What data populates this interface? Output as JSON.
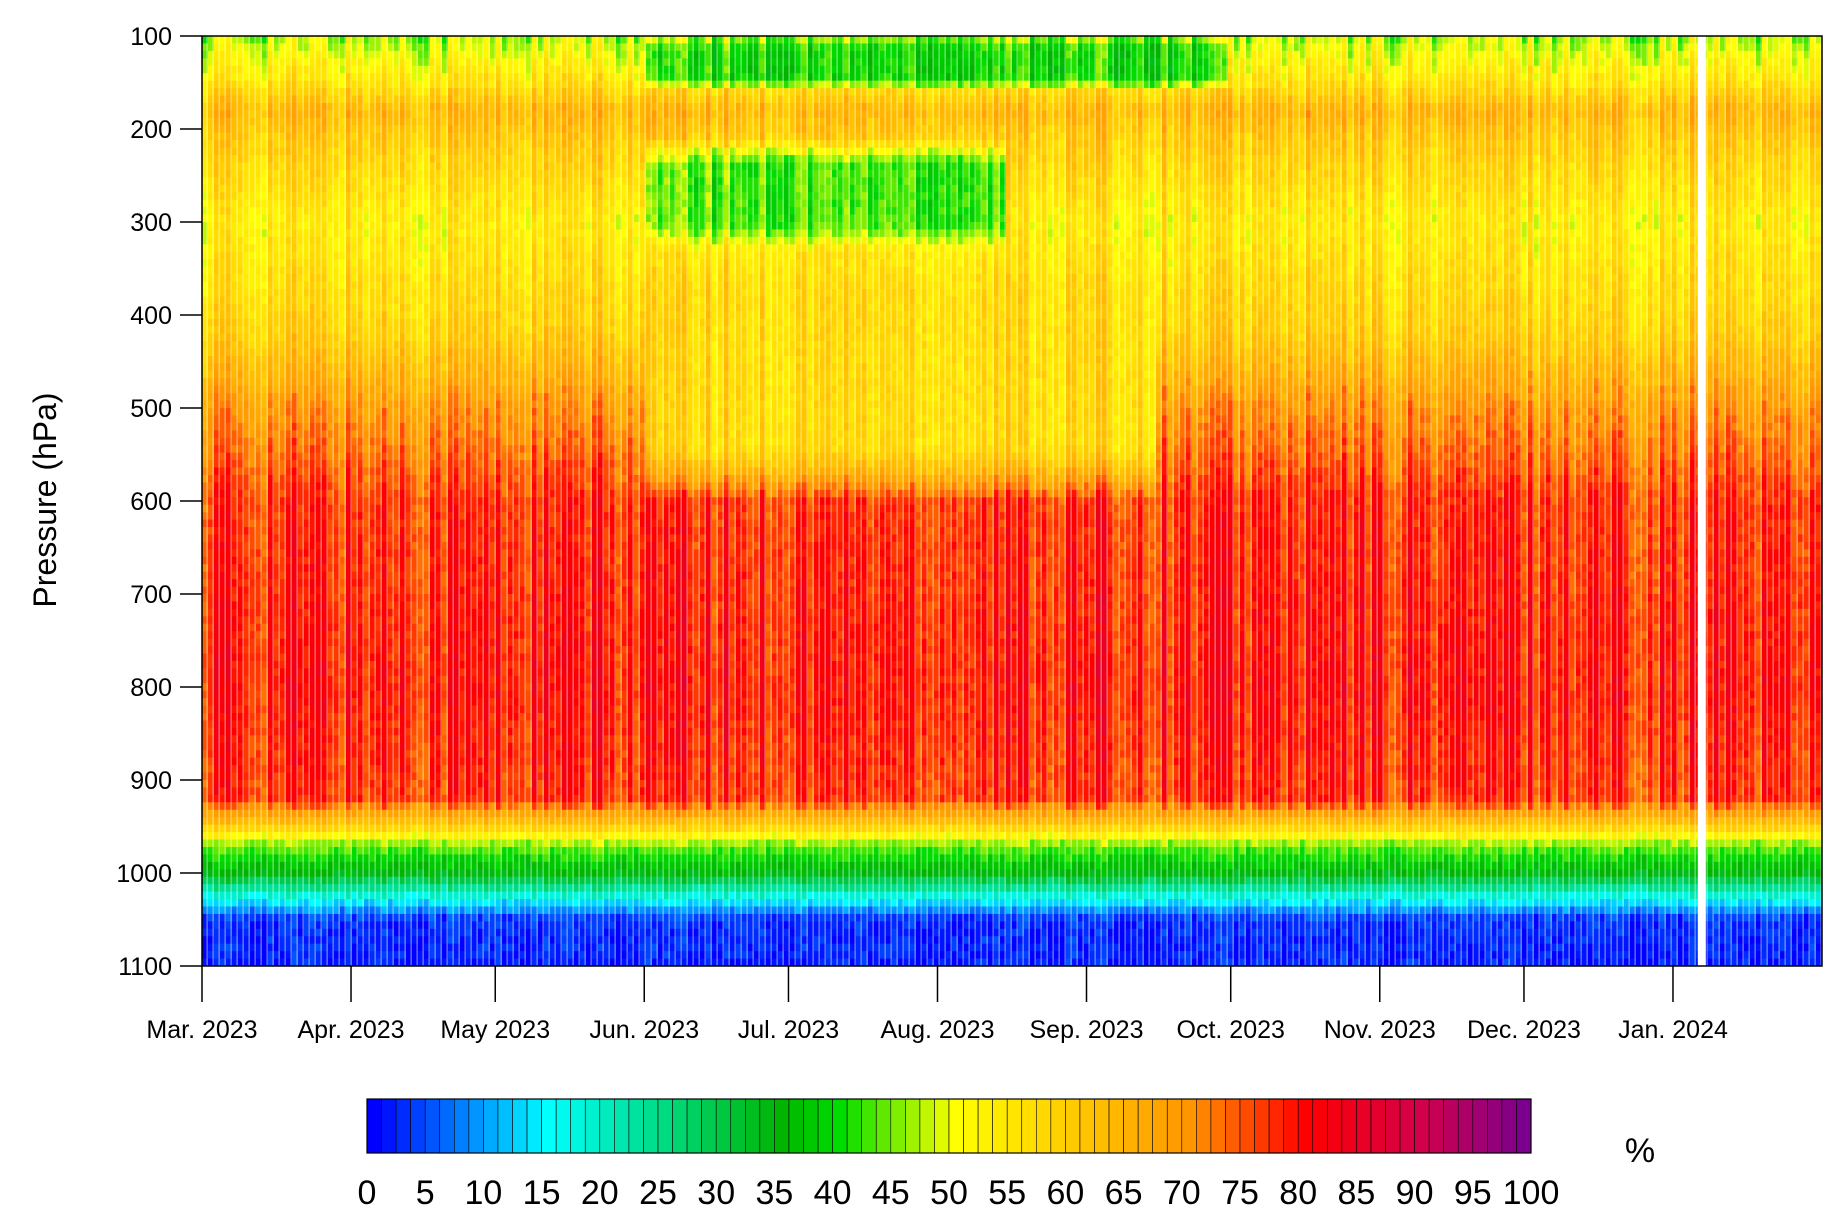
{
  "chart_data": {
    "type": "heatmap",
    "ylabel": "Pressure (hPa)",
    "y_axis": {
      "ticks": [
        100,
        200,
        300,
        400,
        500,
        600,
        700,
        800,
        900,
        1000,
        1100
      ],
      "range": [
        100,
        1100
      ],
      "inverted": true
    },
    "x_axis": {
      "ticks": [
        "Mar. 2023",
        "Apr. 2023",
        "May 2023",
        "Jun. 2023",
        "Jul. 2023",
        "Aug. 2023",
        "Sep. 2023",
        "Oct. 2023",
        "Nov. 2023",
        "Dec. 2023",
        "Jan. 2024"
      ],
      "range": [
        "2023-03-01",
        "2024-02-01"
      ]
    },
    "colorbar": {
      "unit": "%",
      "ticks": [
        0,
        5,
        10,
        15,
        20,
        25,
        30,
        35,
        40,
        45,
        50,
        55,
        60,
        65,
        70,
        75,
        80,
        85,
        90,
        95,
        100
      ],
      "range": [
        0,
        100
      ],
      "step": 1.25,
      "stops": [
        {
          "v": 0,
          "c": "#0000ff"
        },
        {
          "v": 15,
          "c": "#00ffff"
        },
        {
          "v": 35,
          "c": "#00b400"
        },
        {
          "v": 40,
          "c": "#00dc00"
        },
        {
          "v": 50,
          "c": "#ffff00"
        },
        {
          "v": 70,
          "c": "#ff9600"
        },
        {
          "v": 80,
          "c": "#ff0000"
        },
        {
          "v": 90,
          "c": "#d2004b"
        },
        {
          "v": 100,
          "c": "#6e0096"
        }
      ]
    },
    "profile_by_pressure": [
      {
        "p": 100,
        "rh": 47
      },
      {
        "p": 150,
        "rh": 56
      },
      {
        "p": 180,
        "rh": 65
      },
      {
        "p": 210,
        "rh": 61
      },
      {
        "p": 300,
        "rh": 54
      },
      {
        "p": 420,
        "rh": 60
      },
      {
        "p": 500,
        "rh": 70
      },
      {
        "p": 600,
        "rh": 78
      },
      {
        "p": 800,
        "rh": 80
      },
      {
        "p": 920,
        "rh": 78
      },
      {
        "p": 950,
        "rh": 60
      },
      {
        "p": 970,
        "rh": 45
      },
      {
        "p": 1000,
        "rh": 35
      },
      {
        "p": 1025,
        "rh": 18
      },
      {
        "p": 1050,
        "rh": 3
      },
      {
        "p": 1100,
        "rh": 2
      }
    ],
    "seasonal_features": [
      {
        "from": "2023-06-01",
        "to": "2023-10-01",
        "p_from": 100,
        "p_to": 160,
        "rh": 40,
        "note": "green band near top"
      },
      {
        "from": "2023-06-01",
        "to": "2023-08-15",
        "p_from": 210,
        "p_to": 330,
        "rh": 43,
        "note": "green patch"
      },
      {
        "from": "2023-06-01",
        "to": "2023-09-15",
        "p_from": 350,
        "p_to": 600,
        "rh": 58,
        "note": "drier mid-levels"
      }
    ],
    "data_gap": {
      "date": "2024-01-07"
    }
  }
}
